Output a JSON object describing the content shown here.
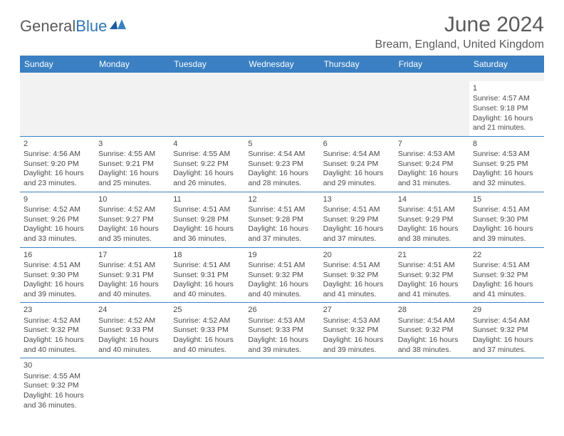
{
  "brand": {
    "word1": "General",
    "word2": "Blue"
  },
  "title": "June 2024",
  "location": "Bream, England, United Kingdom",
  "colors": {
    "header_bg": "#3a80c3",
    "header_text": "#ffffff",
    "blank_bg": "#f2f2f2",
    "divider": "#3a80c3",
    "brand_blue": "#2e75b6",
    "body_text": "#4a4a4a"
  },
  "days_of_week": [
    "Sunday",
    "Monday",
    "Tuesday",
    "Wednesday",
    "Thursday",
    "Friday",
    "Saturday"
  ],
  "weeks": [
    [
      null,
      null,
      null,
      null,
      null,
      null,
      {
        "n": "1",
        "sr": "Sunrise: 4:57 AM",
        "ss": "Sunset: 9:18 PM",
        "d1": "Daylight: 16 hours",
        "d2": "and 21 minutes."
      }
    ],
    [
      {
        "n": "2",
        "sr": "Sunrise: 4:56 AM",
        "ss": "Sunset: 9:20 PM",
        "d1": "Daylight: 16 hours",
        "d2": "and 23 minutes."
      },
      {
        "n": "3",
        "sr": "Sunrise: 4:55 AM",
        "ss": "Sunset: 9:21 PM",
        "d1": "Daylight: 16 hours",
        "d2": "and 25 minutes."
      },
      {
        "n": "4",
        "sr": "Sunrise: 4:55 AM",
        "ss": "Sunset: 9:22 PM",
        "d1": "Daylight: 16 hours",
        "d2": "and 26 minutes."
      },
      {
        "n": "5",
        "sr": "Sunrise: 4:54 AM",
        "ss": "Sunset: 9:23 PM",
        "d1": "Daylight: 16 hours",
        "d2": "and 28 minutes."
      },
      {
        "n": "6",
        "sr": "Sunrise: 4:54 AM",
        "ss": "Sunset: 9:24 PM",
        "d1": "Daylight: 16 hours",
        "d2": "and 29 minutes."
      },
      {
        "n": "7",
        "sr": "Sunrise: 4:53 AM",
        "ss": "Sunset: 9:24 PM",
        "d1": "Daylight: 16 hours",
        "d2": "and 31 minutes."
      },
      {
        "n": "8",
        "sr": "Sunrise: 4:53 AM",
        "ss": "Sunset: 9:25 PM",
        "d1": "Daylight: 16 hours",
        "d2": "and 32 minutes."
      }
    ],
    [
      {
        "n": "9",
        "sr": "Sunrise: 4:52 AM",
        "ss": "Sunset: 9:26 PM",
        "d1": "Daylight: 16 hours",
        "d2": "and 33 minutes."
      },
      {
        "n": "10",
        "sr": "Sunrise: 4:52 AM",
        "ss": "Sunset: 9:27 PM",
        "d1": "Daylight: 16 hours",
        "d2": "and 35 minutes."
      },
      {
        "n": "11",
        "sr": "Sunrise: 4:51 AM",
        "ss": "Sunset: 9:28 PM",
        "d1": "Daylight: 16 hours",
        "d2": "and 36 minutes."
      },
      {
        "n": "12",
        "sr": "Sunrise: 4:51 AM",
        "ss": "Sunset: 9:28 PM",
        "d1": "Daylight: 16 hours",
        "d2": "and 37 minutes."
      },
      {
        "n": "13",
        "sr": "Sunrise: 4:51 AM",
        "ss": "Sunset: 9:29 PM",
        "d1": "Daylight: 16 hours",
        "d2": "and 37 minutes."
      },
      {
        "n": "14",
        "sr": "Sunrise: 4:51 AM",
        "ss": "Sunset: 9:29 PM",
        "d1": "Daylight: 16 hours",
        "d2": "and 38 minutes."
      },
      {
        "n": "15",
        "sr": "Sunrise: 4:51 AM",
        "ss": "Sunset: 9:30 PM",
        "d1": "Daylight: 16 hours",
        "d2": "and 39 minutes."
      }
    ],
    [
      {
        "n": "16",
        "sr": "Sunrise: 4:51 AM",
        "ss": "Sunset: 9:30 PM",
        "d1": "Daylight: 16 hours",
        "d2": "and 39 minutes."
      },
      {
        "n": "17",
        "sr": "Sunrise: 4:51 AM",
        "ss": "Sunset: 9:31 PM",
        "d1": "Daylight: 16 hours",
        "d2": "and 40 minutes."
      },
      {
        "n": "18",
        "sr": "Sunrise: 4:51 AM",
        "ss": "Sunset: 9:31 PM",
        "d1": "Daylight: 16 hours",
        "d2": "and 40 minutes."
      },
      {
        "n": "19",
        "sr": "Sunrise: 4:51 AM",
        "ss": "Sunset: 9:32 PM",
        "d1": "Daylight: 16 hours",
        "d2": "and 40 minutes."
      },
      {
        "n": "20",
        "sr": "Sunrise: 4:51 AM",
        "ss": "Sunset: 9:32 PM",
        "d1": "Daylight: 16 hours",
        "d2": "and 41 minutes."
      },
      {
        "n": "21",
        "sr": "Sunrise: 4:51 AM",
        "ss": "Sunset: 9:32 PM",
        "d1": "Daylight: 16 hours",
        "d2": "and 41 minutes."
      },
      {
        "n": "22",
        "sr": "Sunrise: 4:51 AM",
        "ss": "Sunset: 9:32 PM",
        "d1": "Daylight: 16 hours",
        "d2": "and 41 minutes."
      }
    ],
    [
      {
        "n": "23",
        "sr": "Sunrise: 4:52 AM",
        "ss": "Sunset: 9:32 PM",
        "d1": "Daylight: 16 hours",
        "d2": "and 40 minutes."
      },
      {
        "n": "24",
        "sr": "Sunrise: 4:52 AM",
        "ss": "Sunset: 9:33 PM",
        "d1": "Daylight: 16 hours",
        "d2": "and 40 minutes."
      },
      {
        "n": "25",
        "sr": "Sunrise: 4:52 AM",
        "ss": "Sunset: 9:33 PM",
        "d1": "Daylight: 16 hours",
        "d2": "and 40 minutes."
      },
      {
        "n": "26",
        "sr": "Sunrise: 4:53 AM",
        "ss": "Sunset: 9:33 PM",
        "d1": "Daylight: 16 hours",
        "d2": "and 39 minutes."
      },
      {
        "n": "27",
        "sr": "Sunrise: 4:53 AM",
        "ss": "Sunset: 9:32 PM",
        "d1": "Daylight: 16 hours",
        "d2": "and 39 minutes."
      },
      {
        "n": "28",
        "sr": "Sunrise: 4:54 AM",
        "ss": "Sunset: 9:32 PM",
        "d1": "Daylight: 16 hours",
        "d2": "and 38 minutes."
      },
      {
        "n": "29",
        "sr": "Sunrise: 4:54 AM",
        "ss": "Sunset: 9:32 PM",
        "d1": "Daylight: 16 hours",
        "d2": "and 37 minutes."
      }
    ],
    [
      {
        "n": "30",
        "sr": "Sunrise: 4:55 AM",
        "ss": "Sunset: 9:32 PM",
        "d1": "Daylight: 16 hours",
        "d2": "and 36 minutes."
      },
      null,
      null,
      null,
      null,
      null,
      null
    ]
  ]
}
